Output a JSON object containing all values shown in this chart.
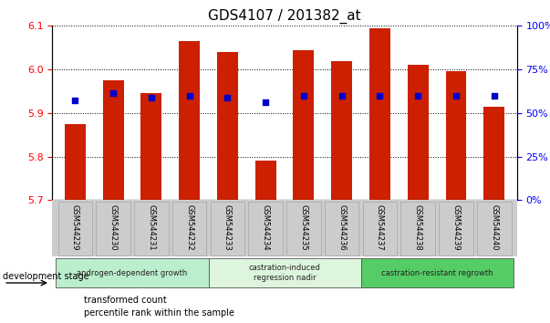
{
  "title": "GDS4107 / 201382_at",
  "samples": [
    "GSM544229",
    "GSM544230",
    "GSM544231",
    "GSM544232",
    "GSM544233",
    "GSM544234",
    "GSM544235",
    "GSM544236",
    "GSM544237",
    "GSM544238",
    "GSM544239",
    "GSM544240"
  ],
  "bar_values": [
    5.875,
    5.975,
    5.945,
    6.065,
    6.04,
    5.79,
    6.045,
    6.02,
    6.095,
    6.01,
    5.995,
    5.915
  ],
  "dot_values": [
    5.93,
    5.945,
    5.935,
    5.94,
    5.935,
    5.925,
    5.94,
    5.94,
    5.94,
    5.94,
    5.94,
    5.94
  ],
  "ylim": [
    5.7,
    6.1
  ],
  "yticks_left": [
    5.7,
    5.8,
    5.9,
    6.0,
    6.1
  ],
  "yticks_right": [
    0,
    25,
    50,
    75,
    100
  ],
  "yticks_right_labels": [
    "0%",
    "25%",
    "50%",
    "75%",
    "100%"
  ],
  "bar_color": "#cc2000",
  "dot_color": "#0000cc",
  "bar_bottom": 5.7,
  "stage_groups": [
    {
      "label": "androgen-dependent growth",
      "start": 0,
      "end": 3,
      "color": "#bbeecc"
    },
    {
      "label": "castration-induced\nregression nadir",
      "start": 4,
      "end": 7,
      "color": "#ddf5dd"
    },
    {
      "label": "castration-resistant regrowth",
      "start": 8,
      "end": 11,
      "color": "#55cc66"
    }
  ],
  "legend_items": [
    {
      "color": "#cc2000",
      "label": "transformed count"
    },
    {
      "color": "#0000cc",
      "label": "percentile rank within the sample"
    }
  ],
  "dev_stage_label": "development stage",
  "title_fontsize": 11,
  "tick_fontsize": 8,
  "xtick_fontsize": 6
}
